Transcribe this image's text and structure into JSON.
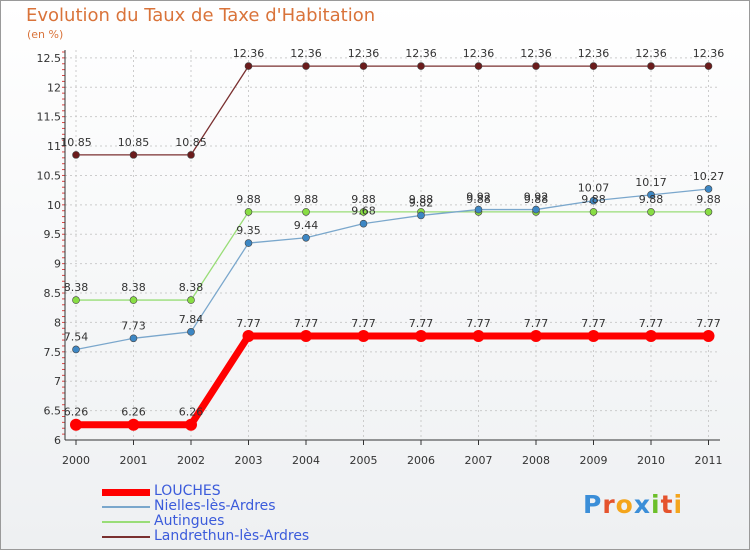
{
  "title": "Evolution du Taux de Taxe d'Habitation",
  "unit": "(en %)",
  "logo": "Proxiti",
  "colors": {
    "title": "#d9733a",
    "legend_text": "#3b5bdb",
    "grid": "#cccccc"
  },
  "chart_data": {
    "type": "line",
    "title": "Evolution du Taux de Taxe d'Habitation",
    "ylabel": "(en %)",
    "xlabel": "",
    "categories": [
      "2000",
      "2001",
      "2002",
      "2003",
      "2004",
      "2005",
      "2006",
      "2007",
      "2008",
      "2009",
      "2010",
      "2011"
    ],
    "ylim": [
      6,
      12.5
    ],
    "yticks": [
      "6",
      "6.5",
      "7",
      "7.5",
      "8",
      "8.5",
      "9",
      "9.5",
      "10",
      "10.5",
      "11",
      "11.5",
      "12",
      "12.5"
    ],
    "ytick_values": [
      6,
      6.5,
      7,
      7.5,
      8,
      8.5,
      9,
      9.5,
      10,
      10.5,
      11,
      11.5,
      12,
      12.5
    ],
    "series": [
      {
        "name": "LOUCHES",
        "color": "#ff0000",
        "marker": "#ff0000",
        "values": [
          6.26,
          6.26,
          6.26,
          7.77,
          7.77,
          7.77,
          7.77,
          7.77,
          7.77,
          7.77,
          7.77,
          7.77
        ],
        "labels": [
          "6.26",
          "6.26",
          "6.26",
          "7.77",
          "7.77",
          "7.77",
          "7.77",
          "7.77",
          "7.77",
          "7.77",
          "7.77",
          "7.77"
        ]
      },
      {
        "name": "Nielles-lès-Ardres",
        "color": "#7aa7cc",
        "marker": "#3d87c4",
        "values": [
          7.54,
          7.73,
          7.84,
          9.35,
          9.44,
          9.68,
          9.82,
          9.92,
          9.92,
          10.07,
          10.17,
          10.27
        ],
        "labels": [
          "7.54",
          "7.73",
          "7.84",
          "9.35",
          "9.44",
          "9.68",
          "9.82",
          "9.92",
          "9.92",
          "10.07",
          "10.17",
          "10.27"
        ]
      },
      {
        "name": "Autingues",
        "color": "#99dd77",
        "marker": "#88dd44",
        "values": [
          8.38,
          8.38,
          8.38,
          9.88,
          9.88,
          9.88,
          9.88,
          9.88,
          9.88,
          9.88,
          9.88,
          9.88
        ],
        "labels": [
          "8.38",
          "8.38",
          "8.38",
          "9.88",
          "9.88",
          "9.88",
          "9.88",
          "9.88",
          "9.88",
          "9.88",
          "9.88",
          "9.88"
        ]
      },
      {
        "name": "Landrethun-lès-Ardres",
        "color": "#7a3030",
        "marker": "#6b1c1c",
        "values": [
          10.85,
          10.85,
          10.85,
          12.36,
          12.36,
          12.36,
          12.36,
          12.36,
          12.36,
          12.36,
          12.36,
          12.36
        ],
        "labels": [
          "10.85",
          "10.85",
          "10.85",
          "12.36",
          "12.36",
          "12.36",
          "12.36",
          "12.36",
          "12.36",
          "12.36",
          "12.36",
          "12.36"
        ]
      }
    ],
    "legend_position": "bottom-left"
  }
}
